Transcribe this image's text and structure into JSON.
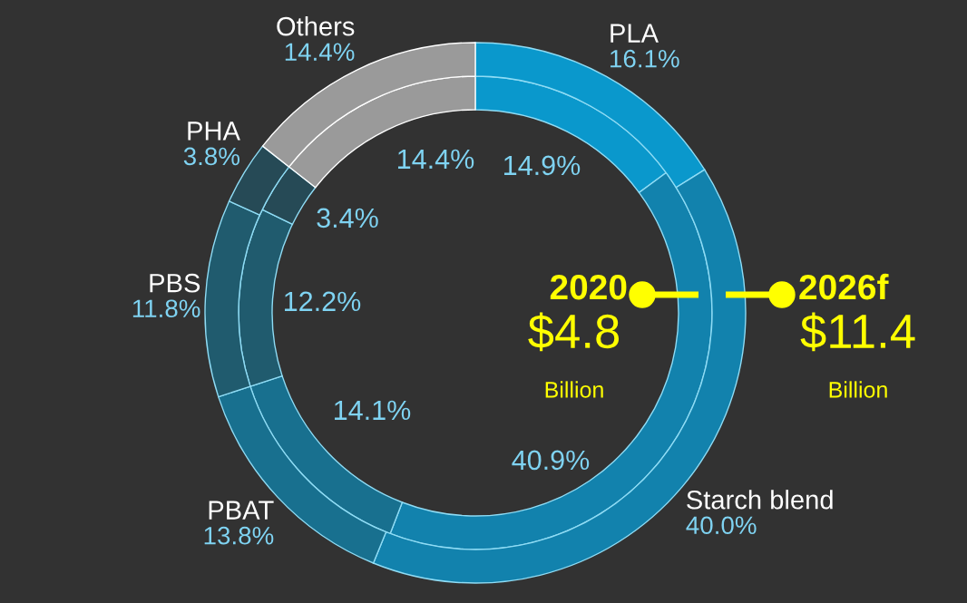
{
  "chart_data": {
    "type": "donut",
    "categories": [
      "PLA",
      "Starch blend",
      "PBAT",
      "PBS",
      "PHA",
      "Others"
    ],
    "colors": [
      "#0a98cc",
      "#1282ad",
      "#18708f",
      "#205b6e",
      "#264a56",
      "#9a9a9a"
    ],
    "series": [
      {
        "name": "2020",
        "values": [
          14.9,
          40.9,
          14.1,
          12.2,
          3.4,
          14.4
        ],
        "value_labels": [
          "14.9%",
          "40.9%",
          "14.1%",
          "12.2%",
          "3.4%",
          "14.4%"
        ]
      },
      {
        "name": "2026f",
        "values": [
          16.1,
          40.0,
          13.8,
          11.8,
          3.8,
          14.4
        ],
        "value_labels": [
          "16.1%",
          "40.0%",
          "13.8%",
          "11.8%",
          "3.8%",
          "14.4%"
        ]
      }
    ],
    "annotations": [
      "$4.8",
      "Billion",
      "$11.4",
      "Billion"
    ]
  }
}
